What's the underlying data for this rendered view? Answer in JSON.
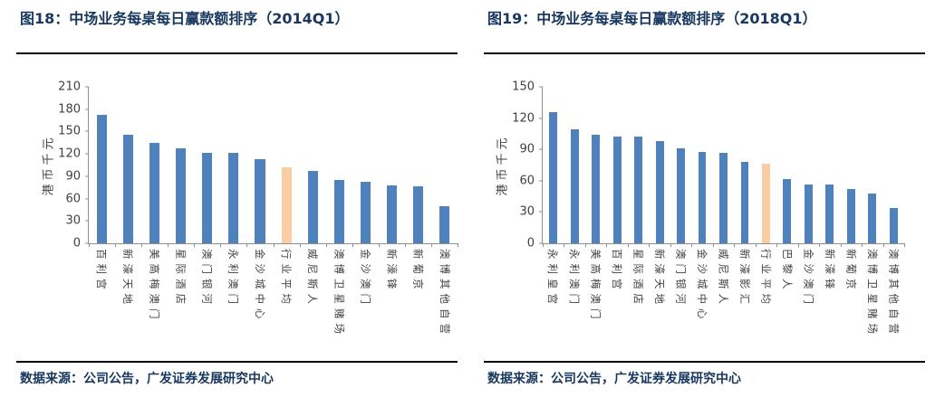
{
  "chart_data": [
    {
      "type": "bar",
      "title": "图18：中场业务每桌每日赢款额排序（2014Q1）",
      "ylabel": "港币千元",
      "xlabel": "",
      "ylim": [
        0,
        210
      ],
      "yticks": [
        0,
        30,
        60,
        90,
        120,
        150,
        180,
        210
      ],
      "grid": false,
      "legend_position": "none",
      "categories": [
        "百利宫",
        "新濠天地",
        "美高梅澳门",
        "星际酒店",
        "澳门银河",
        "永利澳门",
        "金沙城中心",
        "行业平均",
        "威尼斯人",
        "澳博卫星赌场",
        "金沙澳门",
        "新濠锋",
        "新葡京",
        "澳博其他自营"
      ],
      "values": [
        172,
        146,
        135,
        127,
        122,
        122,
        113,
        102,
        97,
        85,
        83,
        78,
        76,
        50
      ],
      "highlight_index": 7,
      "highlight_category": "行业平均",
      "bar_color": "#4F81BD",
      "highlight_color": "#FACDA4",
      "source": "数据来源：公司公告，广发证券发展研究中心"
    },
    {
      "type": "bar",
      "title": "图19：中场业务每桌每日赢款额排序（2018Q1）",
      "ylabel": "港币千元",
      "xlabel": "",
      "ylim": [
        0,
        150
      ],
      "yticks": [
        0,
        30,
        60,
        90,
        120,
        150
      ],
      "grid": false,
      "legend_position": "none",
      "categories": [
        "永利皇宫",
        "永利澳门",
        "美高梅澳门",
        "百利宫",
        "星际酒店",
        "新濠天地",
        "澳门银河",
        "金沙城中心",
        "威尼斯人",
        "新濠影汇",
        "行业平均",
        "巴黎人",
        "金沙澳门",
        "新濠锋",
        "新葡京",
        "澳博卫星赌场",
        "澳博其他自营"
      ],
      "values": [
        126,
        109,
        104,
        102,
        102,
        98,
        91,
        88,
        87,
        78,
        76,
        62,
        56,
        56,
        52,
        48,
        34
      ],
      "highlight_index": 10,
      "highlight_category": "行业平均",
      "bar_color": "#4F81BD",
      "highlight_color": "#FACDA4",
      "source": "数据来源：公司公告，广发证券发展研究中心"
    }
  ],
  "colors": {
    "title": "#17375E",
    "axis": "#8E8E8E",
    "tick_text": "#404040",
    "rule": "#000000"
  }
}
